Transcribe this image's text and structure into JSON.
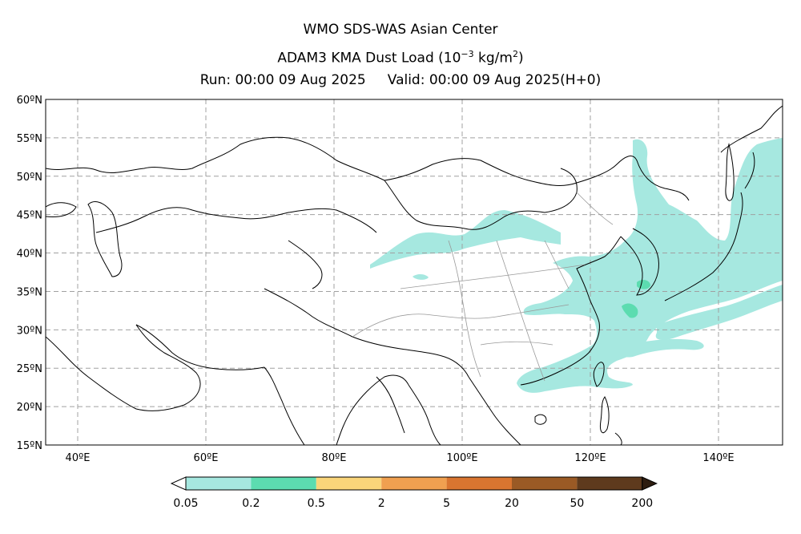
{
  "header": {
    "center": "WMO SDS-WAS Asian Center",
    "product_prefix": "ADAM3 KMA Dust Load (10",
    "exponent": "−3",
    "unit_prefix": " kg/m",
    "unit_exp": "2",
    "suffix": ")",
    "run_line": "Run: 00:00 09 Aug 2025     Valid: 00:00 09 Aug 2025(H+0)"
  },
  "map": {
    "lon_ticks": [
      "40ºE",
      "60ºE",
      "80ºE",
      "100ºE",
      "120ºE",
      "140ºE"
    ],
    "lat_ticks": [
      "60ºN",
      "55ºN",
      "50ºN",
      "45ºN",
      "40ºN",
      "35ºN",
      "30ºN",
      "25ºN",
      "20ºN",
      "15ºN"
    ],
    "lon_range": [
      35,
      150
    ],
    "lat_range": [
      15,
      60
    ],
    "grid": true
  },
  "colorbar": {
    "labels": [
      "0.05",
      "0.2",
      "0.5",
      "2",
      "5",
      "20",
      "50",
      "200"
    ],
    "colors": [
      "#a6e8e0",
      "#5cdcb0",
      "#fad57a",
      "#f0a050",
      "#d97530",
      "#9a5a25",
      "#5e3a1d",
      "#2e1d10"
    ]
  },
  "dust_colors": {
    "light": "#a6e8e0",
    "medium": "#5cdcb0"
  }
}
